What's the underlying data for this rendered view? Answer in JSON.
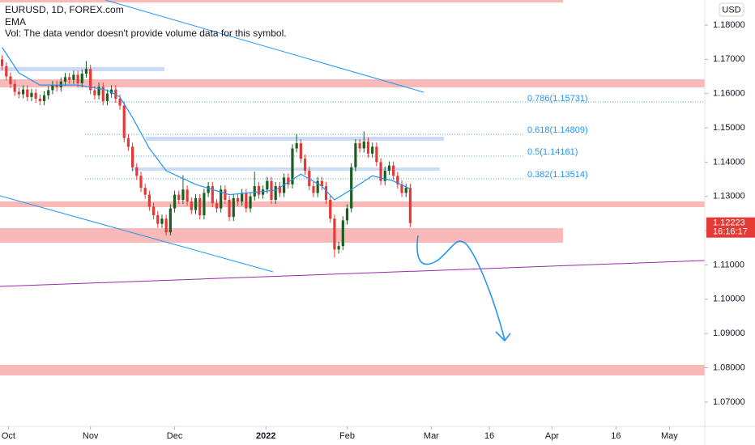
{
  "chart_data": {
    "type": "candlestick",
    "title": "EURUSD, 1D, FOREX.com",
    "subtitle": "Vol: The data vendor doesn't provide volume data for this symbol.",
    "currency": "USD",
    "up_color": "#1b5e20",
    "down_color": "#e53935",
    "open": [
      1.17,
      1.168,
      1.165,
      1.1628,
      1.1605,
      1.1598,
      1.1612,
      1.159,
      1.1602,
      1.1585,
      1.1578,
      1.1595,
      1.161,
      1.1625,
      1.1618,
      1.1635,
      1.1648,
      1.164,
      1.1655,
      1.163,
      1.1658,
      1.1672,
      1.161,
      1.1595,
      1.162,
      1.1578,
      1.16,
      1.1612,
      1.1585,
      1.1565,
      1.147,
      1.1445,
      1.1385,
      1.136,
      1.1325,
      1.1305,
      1.127,
      1.1245,
      1.122,
      1.1235,
      1.1195,
      1.1265,
      1.1305,
      1.129,
      1.132,
      1.1285,
      1.126,
      1.1295,
      1.1245,
      1.131,
      1.133,
      1.128,
      1.1265,
      1.132,
      1.129,
      1.124,
      1.1295,
      1.1285,
      1.131,
      1.1265,
      1.13,
      1.133,
      1.1305,
      1.132,
      1.1345,
      1.129,
      1.133,
      1.131,
      1.1355,
      1.1335,
      1.144,
      1.1455,
      1.141,
      1.1375,
      1.133,
      1.131,
      1.1345,
      1.133,
      1.129,
      1.1235,
      1.1145,
      1.1155,
      1.123,
      1.1265,
      1.1385,
      1.1455,
      1.144,
      1.146,
      1.1425,
      1.1445,
      1.14,
      1.1345,
      1.1375,
      1.139,
      1.136,
      1.1335,
      1.131,
      1.1325
    ],
    "high": [
      1.1712,
      1.1692,
      1.1662,
      1.164,
      1.1617,
      1.1624,
      1.1624,
      1.1614,
      1.1614,
      1.1597,
      1.1607,
      1.1622,
      1.1637,
      1.1637,
      1.1647,
      1.166,
      1.166,
      1.1667,
      1.1667,
      1.167,
      1.1695,
      1.1684,
      1.1622,
      1.1632,
      1.1632,
      1.1612,
      1.1624,
      1.1624,
      1.1597,
      1.1577,
      1.1482,
      1.1457,
      1.1397,
      1.1372,
      1.1337,
      1.1317,
      1.1282,
      1.1257,
      1.1247,
      1.1247,
      1.1277,
      1.1317,
      1.1317,
      1.1362,
      1.1332,
      1.1297,
      1.1307,
      1.1307,
      1.1322,
      1.1342,
      1.1342,
      1.1292,
      1.1332,
      1.1332,
      1.1302,
      1.1307,
      1.1307,
      1.1322,
      1.1322,
      1.1312,
      1.1372,
      1.1342,
      1.1332,
      1.1357,
      1.1357,
      1.1342,
      1.1342,
      1.1367,
      1.1367,
      1.1452,
      1.1482,
      1.1467,
      1.1422,
      1.1387,
      1.1342,
      1.1357,
      1.1357,
      1.1342,
      1.1302,
      1.1247,
      1.1167,
      1.1242,
      1.1277,
      1.1397,
      1.1467,
      1.1467,
      1.149,
      1.1472,
      1.1457,
      1.1457,
      1.1412,
      1.1387,
      1.1402,
      1.1402,
      1.1372,
      1.1347,
      1.1337,
      1.1337
    ],
    "low": [
      1.1668,
      1.1638,
      1.1616,
      1.1593,
      1.1586,
      1.1586,
      1.1578,
      1.1578,
      1.1573,
      1.1566,
      1.1566,
      1.1583,
      1.1598,
      1.1606,
      1.1606,
      1.1623,
      1.1628,
      1.1628,
      1.1618,
      1.1618,
      1.1646,
      1.1598,
      1.1583,
      1.1583,
      1.1566,
      1.1566,
      1.1588,
      1.1573,
      1.1553,
      1.1458,
      1.1433,
      1.1373,
      1.1348,
      1.1313,
      1.1293,
      1.1258,
      1.1233,
      1.1208,
      1.1208,
      1.1186,
      1.1186,
      1.1253,
      1.1278,
      1.1278,
      1.1273,
      1.1248,
      1.1248,
      1.1233,
      1.1233,
      1.1298,
      1.1268,
      1.1253,
      1.1253,
      1.1278,
      1.1228,
      1.1228,
      1.1273,
      1.1273,
      1.1253,
      1.1253,
      1.1288,
      1.1293,
      1.1293,
      1.1308,
      1.1278,
      1.1278,
      1.1298,
      1.1298,
      1.1323,
      1.1323,
      1.1428,
      1.1398,
      1.1363,
      1.1318,
      1.1298,
      1.1298,
      1.1318,
      1.1278,
      1.1223,
      1.1122,
      1.1133,
      1.1143,
      1.1218,
      1.1253,
      1.1373,
      1.1428,
      1.1428,
      1.1413,
      1.1413,
      1.1388,
      1.1333,
      1.1333,
      1.1363,
      1.1348,
      1.1323,
      1.1298,
      1.1298,
      1.121
    ],
    "close": [
      1.168,
      1.165,
      1.1628,
      1.1605,
      1.1598,
      1.1612,
      1.159,
      1.1602,
      1.1585,
      1.1578,
      1.1595,
      1.161,
      1.1625,
      1.1618,
      1.1635,
      1.1648,
      1.164,
      1.1655,
      1.163,
      1.1658,
      1.1672,
      1.161,
      1.1595,
      1.162,
      1.1578,
      1.16,
      1.1612,
      1.1585,
      1.1565,
      1.147,
      1.1445,
      1.1385,
      1.136,
      1.1325,
      1.1305,
      1.127,
      1.1245,
      1.122,
      1.1235,
      1.1195,
      1.1265,
      1.1305,
      1.129,
      1.132,
      1.1285,
      1.126,
      1.1295,
      1.1245,
      1.131,
      1.133,
      1.128,
      1.1265,
      1.132,
      1.129,
      1.124,
      1.1295,
      1.1285,
      1.131,
      1.1265,
      1.13,
      1.133,
      1.1305,
      1.132,
      1.1345,
      1.129,
      1.133,
      1.131,
      1.1355,
      1.1335,
      1.144,
      1.1455,
      1.141,
      1.1375,
      1.133,
      1.131,
      1.1345,
      1.133,
      1.129,
      1.1235,
      1.1145,
      1.1155,
      1.123,
      1.1265,
      1.1385,
      1.1455,
      1.144,
      1.146,
      1.1425,
      1.1445,
      1.14,
      1.1345,
      1.1375,
      1.139,
      1.136,
      1.1335,
      1.131,
      1.1325,
      1.1222
    ],
    "ema": {
      "name": "EMA",
      "color": "#2196f3",
      "x": [
        0,
        4,
        9,
        18,
        25,
        28,
        31,
        35,
        39,
        46,
        54,
        65,
        71,
        76,
        79,
        83,
        88,
        93,
        97
      ],
      "values": [
        1.1735,
        1.166,
        1.1625,
        1.1625,
        1.161,
        1.159,
        1.153,
        1.144,
        1.1375,
        1.1335,
        1.1305,
        1.1318,
        1.1365,
        1.133,
        1.129,
        1.132,
        1.136,
        1.1345,
        1.1322
      ]
    },
    "last_price": 1.12223,
    "countdown": "16:16:17",
    "fib_labels": [
      "0.786(1.15731)",
      "0.618(1.14809)",
      "0.5(1.14161)",
      "0.382(1.13514)"
    ],
    "xlim": [
      -0.5,
      167
    ],
    "xticks": [
      {
        "value": 1.5,
        "label": "Oct"
      },
      {
        "value": 21,
        "label": "Nov"
      },
      {
        "value": 41,
        "label": "Dec"
      },
      {
        "value": 62.7,
        "label": "2022"
      },
      {
        "value": 82,
        "label": "Feb"
      },
      {
        "value": 102,
        "label": "Mar"
      },
      {
        "value": 115.8,
        "label": "16"
      },
      {
        "value": 130.7,
        "label": "Apr"
      },
      {
        "value": 145.9,
        "label": "16"
      },
      {
        "value": 158.6,
        "label": "May"
      }
    ],
    "ylim": [
      1.0629,
      1.1873
    ],
    "yticks": [
      {
        "value": 1.07,
        "label": "1.07000"
      },
      {
        "value": 1.08,
        "label": "1.08000"
      },
      {
        "value": 1.09,
        "label": "1.09000"
      },
      {
        "value": 1.1,
        "label": "1.10000"
      },
      {
        "value": 1.11,
        "label": "1.11000"
      },
      {
        "value": 1.12,
        "label": "1.12000"
      },
      {
        "value": 1.13,
        "label": "1.13000"
      },
      {
        "value": 1.14,
        "label": "1.14000"
      },
      {
        "value": 1.15,
        "label": "1.15000"
      },
      {
        "value": 1.16,
        "label": "1.16000"
      },
      {
        "value": 1.17,
        "label": "1.17000"
      },
      {
        "value": 1.18,
        "label": "1.18000"
      }
    ],
    "grid": false
  }
}
